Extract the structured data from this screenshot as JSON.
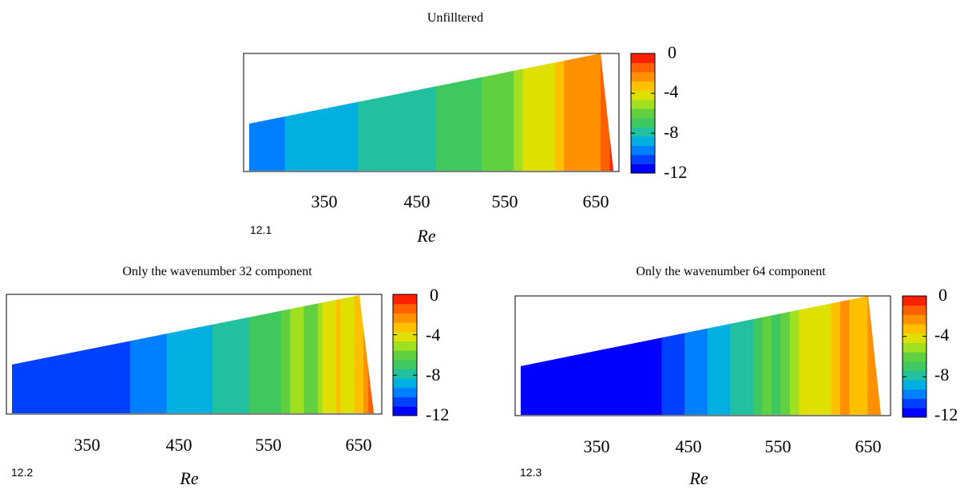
{
  "chart_data": [
    {
      "id": "12.1",
      "type": "heatmap",
      "title": "Unfilltered",
      "xlabel": "Re",
      "ylabel": "",
      "xticks": [
        "350",
        "450",
        "550",
        "650"
      ],
      "xtick_values": [
        350,
        450,
        550,
        650
      ],
      "xlim": [
        270,
        680
      ],
      "colorbar_ticks": [
        "0",
        "-4",
        "-8",
        "-12"
      ],
      "colorbar_values": [
        0,
        -4,
        -8,
        -12
      ],
      "colorbar_range": [
        -12,
        0
      ],
      "front_stations": [
        {
          "re": 280,
          "level": -10
        },
        {
          "re": 350,
          "level": -9
        },
        {
          "re": 440,
          "level": -8
        },
        {
          "re": 520,
          "level": -7
        },
        {
          "re": 560,
          "level": -5.5
        },
        {
          "re": 600,
          "level": -3.5
        },
        {
          "re": 640,
          "level": -2
        },
        {
          "re": 670,
          "level": -1
        }
      ]
    },
    {
      "id": "12.2",
      "type": "heatmap",
      "title": "Only the wavenumber 32 component",
      "xlabel": "Re",
      "ylabel": "",
      "xticks": [
        "350",
        "450",
        "550",
        "650"
      ],
      "xtick_values": [
        350,
        450,
        550,
        650
      ],
      "xlim": [
        270,
        680
      ],
      "colorbar_ticks": [
        "0",
        "-4",
        "-8",
        "-12"
      ],
      "colorbar_values": [
        0,
        -4,
        -8,
        -12
      ],
      "colorbar_range": [
        -12,
        0
      ],
      "front_stations": [
        {
          "re": 280,
          "level": -11.5
        },
        {
          "re": 390,
          "level": -11
        },
        {
          "re": 420,
          "level": -10
        },
        {
          "re": 470,
          "level": -9
        },
        {
          "re": 520,
          "level": -8
        },
        {
          "re": 570,
          "level": -6.5
        },
        {
          "re": 620,
          "level": -4.5
        },
        {
          "re": 660,
          "level": -2.5
        },
        {
          "re": 675,
          "level": -1
        }
      ]
    },
    {
      "id": "12.3",
      "type": "heatmap",
      "title": "Only the wavenumber 64 component",
      "xlabel": "Re",
      "ylabel": "",
      "xticks": [
        "350",
        "450",
        "550",
        "650"
      ],
      "xtick_values": [
        350,
        450,
        550,
        650
      ],
      "xlim": [
        270,
        680
      ],
      "colorbar_ticks": [
        "0",
        "-4",
        "-8",
        "-12"
      ],
      "colorbar_values": [
        0,
        -4,
        -8,
        -12
      ],
      "colorbar_range": [
        -12,
        0
      ],
      "front_stations": [
        {
          "re": 280,
          "level": -12
        },
        {
          "re": 420,
          "level": -12
        },
        {
          "re": 470,
          "level": -10
        },
        {
          "re": 520,
          "level": -8
        },
        {
          "re": 560,
          "level": -6
        },
        {
          "re": 600,
          "level": -4
        },
        {
          "re": 640,
          "level": -2.5
        },
        {
          "re": 670,
          "level": -2
        }
      ]
    }
  ],
  "colormap": [
    "#0000ff",
    "#0040ff",
    "#0080ff",
    "#00b0e0",
    "#20c0a0",
    "#40c860",
    "#60d040",
    "#a0e020",
    "#e0e000",
    "#ffc000",
    "#ff9000",
    "#ff6000",
    "#ff2000"
  ]
}
